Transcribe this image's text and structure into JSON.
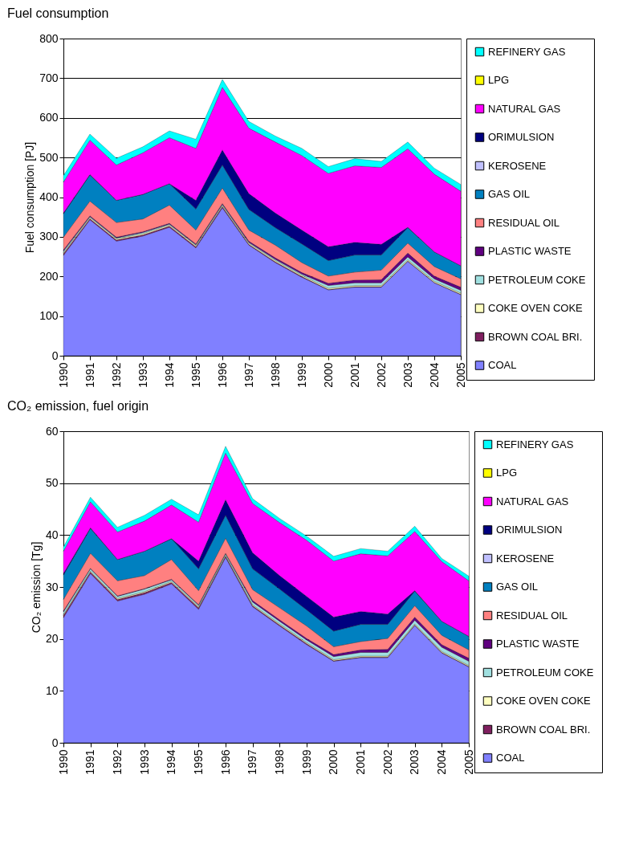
{
  "chart_data": [
    {
      "type": "area",
      "stacked": true,
      "title": "Fuel consumption",
      "ylabel": "Fuel consumption [PJ]",
      "ylim": [
        0,
        800
      ],
      "yticks": [
        0,
        100,
        200,
        300,
        400,
        500,
        600,
        700,
        800
      ],
      "grid": "y",
      "legend": "right",
      "categories": [
        "1990",
        "1991",
        "1992",
        "1993",
        "1994",
        "1995",
        "1996",
        "1997",
        "1998",
        "1999",
        "2000",
        "2001",
        "2002",
        "2003",
        "2004",
        "2005"
      ],
      "series": [
        {
          "name": "COAL",
          "color": "#8080ff",
          "values": [
            253,
            343,
            289,
            302,
            324,
            272,
            373,
            279,
            235,
            198,
            166,
            173,
            173,
            238,
            184,
            154
          ]
        },
        {
          "name": "BROWN COAL BRI.",
          "color": "#7f1f5f",
          "values": [
            4,
            3,
            3,
            3,
            3,
            3,
            3,
            2,
            2,
            2,
            1,
            1,
            1,
            1,
            1,
            1
          ]
        },
        {
          "name": "COKE OVEN COKE",
          "color": "#ffffc0",
          "values": [
            3,
            3,
            3,
            3,
            3,
            3,
            3,
            3,
            3,
            3,
            3,
            3,
            3,
            3,
            3,
            3
          ]
        },
        {
          "name": "PETROLEUM COKE",
          "color": "#a0e0e0",
          "values": [
            4,
            2,
            2,
            3,
            2,
            2,
            3,
            2,
            3,
            3,
            7,
            7,
            7,
            7,
            6,
            7
          ]
        },
        {
          "name": "PLASTIC WASTE",
          "color": "#600080",
          "values": [
            3,
            2,
            2,
            2,
            2,
            2,
            2,
            3,
            4,
            4,
            6,
            7,
            8,
            10,
            7,
            8
          ]
        },
        {
          "name": "RESIDUAL OIL",
          "color": "#ff8080",
          "values": [
            32,
            37,
            37,
            32,
            46,
            35,
            39,
            28,
            32,
            25,
            18,
            20,
            24,
            25,
            24,
            21
          ]
        },
        {
          "name": "GAS OIL",
          "color": "#0080c0",
          "values": [
            59,
            66,
            56,
            62,
            54,
            53,
            58,
            52,
            44,
            47,
            39,
            43,
            38,
            39,
            37,
            33
          ]
        },
        {
          "name": "KEROSENE",
          "color": "#c0c0ff",
          "values": [
            null,
            null,
            null,
            null,
            null,
            null,
            null,
            null,
            null,
            null,
            null,
            null,
            null,
            null,
            null,
            null
          ]
        },
        {
          "name": "ORIMULSION",
          "color": "#000080",
          "values": [
            2,
            1,
            0,
            0,
            0,
            22,
            38,
            40,
            37,
            35,
            35,
            32,
            27,
            1,
            0,
            0
          ]
        },
        {
          "name": "NATURAL GAS",
          "color": "#ff00ff",
          "values": [
            78,
            87,
            89,
            105,
            116,
            131,
            158,
            165,
            179,
            188,
            185,
            193,
            194,
            198,
            196,
            188
          ]
        },
        {
          "name": "LPG",
          "color": "#ffff00",
          "values": [
            null,
            null,
            null,
            null,
            null,
            null,
            null,
            null,
            null,
            null,
            null,
            null,
            null,
            null,
            null,
            null
          ]
        },
        {
          "name": "REFINERY GAS",
          "color": "#00ffff",
          "values": [
            16,
            15,
            17,
            15,
            17,
            23,
            20,
            17,
            15,
            18,
            17,
            18,
            15,
            17,
            15,
            17
          ]
        }
      ]
    },
    {
      "type": "area",
      "stacked": true,
      "title": "CO₂ emission, fuel origin",
      "ylabel": "CO₂ emission [Tg]",
      "ylim": [
        0,
        60
      ],
      "yticks": [
        0,
        10,
        20,
        30,
        40,
        50,
        60
      ],
      "grid": "y",
      "legend": "right",
      "categories": [
        "1990",
        "1991",
        "1992",
        "1993",
        "1994",
        "1995",
        "1996",
        "1997",
        "1998",
        "1999",
        "2000",
        "2001",
        "2002",
        "2003",
        "2004",
        "2005"
      ],
      "series": [
        {
          "name": "COAL",
          "color": "#8080ff",
          "values": [
            24.1,
            32.6,
            27.3,
            28.6,
            30.6,
            25.7,
            35.7,
            26.2,
            22.5,
            18.9,
            15.7,
            16.4,
            16.4,
            22.6,
            17.3,
            14.6
          ]
        },
        {
          "name": "BROWN COAL BRI.",
          "color": "#7f1f5f",
          "values": [
            0.4,
            0.3,
            0.3,
            0.3,
            0.3,
            0.3,
            0.2,
            0.2,
            0.2,
            0.2,
            0.1,
            0.1,
            0.1,
            0.1,
            0.1,
            0.1
          ]
        },
        {
          "name": "COKE OVEN COKE",
          "color": "#ffffc0",
          "values": [
            0.2,
            0.2,
            0.2,
            0.2,
            0.2,
            0.2,
            0.2,
            0.2,
            0.2,
            0.2,
            0.2,
            0.2,
            0.2,
            0.2,
            0.2,
            0.2
          ]
        },
        {
          "name": "PETROLEUM COKE",
          "color": "#a0e0e0",
          "values": [
            0.5,
            0.4,
            0.4,
            0.5,
            0.3,
            0.3,
            0.3,
            0.5,
            0.5,
            0.5,
            0.6,
            0.7,
            0.7,
            0.7,
            0.8,
            0.8
          ]
        },
        {
          "name": "PLASTIC WASTE",
          "color": "#600080",
          "values": [
            0.2,
            0.1,
            0.1,
            0.1,
            0.1,
            0.1,
            0.1,
            0.3,
            0.3,
            0.3,
            0.4,
            0.5,
            0.6,
            0.6,
            0.5,
            0.6
          ]
        },
        {
          "name": "RESIDUAL OIL",
          "color": "#ff8080",
          "values": [
            2.2,
            2.9,
            2.9,
            2.5,
            3.8,
            2.7,
            2.9,
            2.1,
            2.3,
            2.4,
            1.5,
            1.6,
            2.1,
            2.2,
            1.8,
            1.6
          ]
        },
        {
          "name": "GAS OIL",
          "color": "#0080c0",
          "values": [
            4.7,
            4.8,
            4.1,
            4.7,
            4.0,
            4.2,
            4.4,
            4.0,
            3.6,
            3.1,
            3.0,
            3.3,
            2.7,
            2.8,
            2.7,
            2.6
          ]
        },
        {
          "name": "KEROSENE",
          "color": "#c0c0ff",
          "values": [
            null,
            null,
            null,
            null,
            null,
            null,
            null,
            null,
            null,
            null,
            null,
            null,
            null,
            null,
            null,
            null
          ]
        },
        {
          "name": "ORIMULSION",
          "color": "#000080",
          "values": [
            0.3,
            0.1,
            0,
            0,
            0,
            1.5,
            3.0,
            3.1,
            2.6,
            2.6,
            2.7,
            2.5,
            2.0,
            0.1,
            0,
            0
          ]
        },
        {
          "name": "NATURAL GAS",
          "color": "#ff00ff",
          "values": [
            4.3,
            5.0,
            5.3,
            5.8,
            6.5,
            7.5,
            9.0,
            9.5,
            10.2,
            10.8,
            10.8,
            11.1,
            11.2,
            11.4,
            11.5,
            10.7
          ]
        },
        {
          "name": "LPG",
          "color": "#ffff00",
          "values": [
            null,
            null,
            null,
            null,
            null,
            null,
            null,
            null,
            null,
            null,
            null,
            null,
            null,
            null,
            null,
            null
          ]
        },
        {
          "name": "REFINERY GAS",
          "color": "#00ffff",
          "values": [
            0.8,
            0.9,
            0.9,
            1.1,
            1.1,
            1.4,
            1.3,
            0.9,
            0.8,
            0.8,
            0.9,
            1.0,
            0.9,
            1.0,
            0.6,
            0.9
          ]
        }
      ]
    }
  ]
}
